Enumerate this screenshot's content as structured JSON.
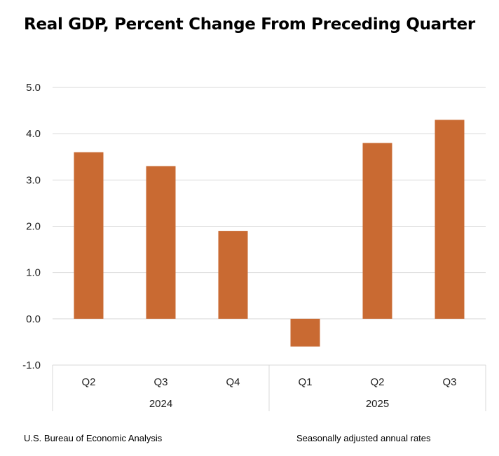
{
  "chart_data": {
    "type": "bar",
    "title": "Real GDP, Percent Change From Preceding Quarter",
    "categories": [
      "Q2",
      "Q3",
      "Q4",
      "Q1",
      "Q2",
      "Q3"
    ],
    "groups": [
      {
        "label": "2024",
        "categories": [
          "Q2",
          "Q3",
          "Q4"
        ]
      },
      {
        "label": "2025",
        "categories": [
          "Q1",
          "Q2",
          "Q3"
        ]
      }
    ],
    "values": [
      3.6,
      3.3,
      1.9,
      -0.6,
      3.8,
      4.3
    ],
    "ylim": [
      -1.0,
      5.0
    ],
    "yticks": [
      "-1.0",
      "0.0",
      "1.0",
      "2.0",
      "3.0",
      "4.0",
      "5.0"
    ],
    "xlabel": "",
    "ylabel": "",
    "grid": true,
    "bar_color": "#C96A32"
  },
  "footer": {
    "source": "U.S. Bureau of Economic Analysis",
    "note": "Seasonally adjusted annual rates"
  }
}
